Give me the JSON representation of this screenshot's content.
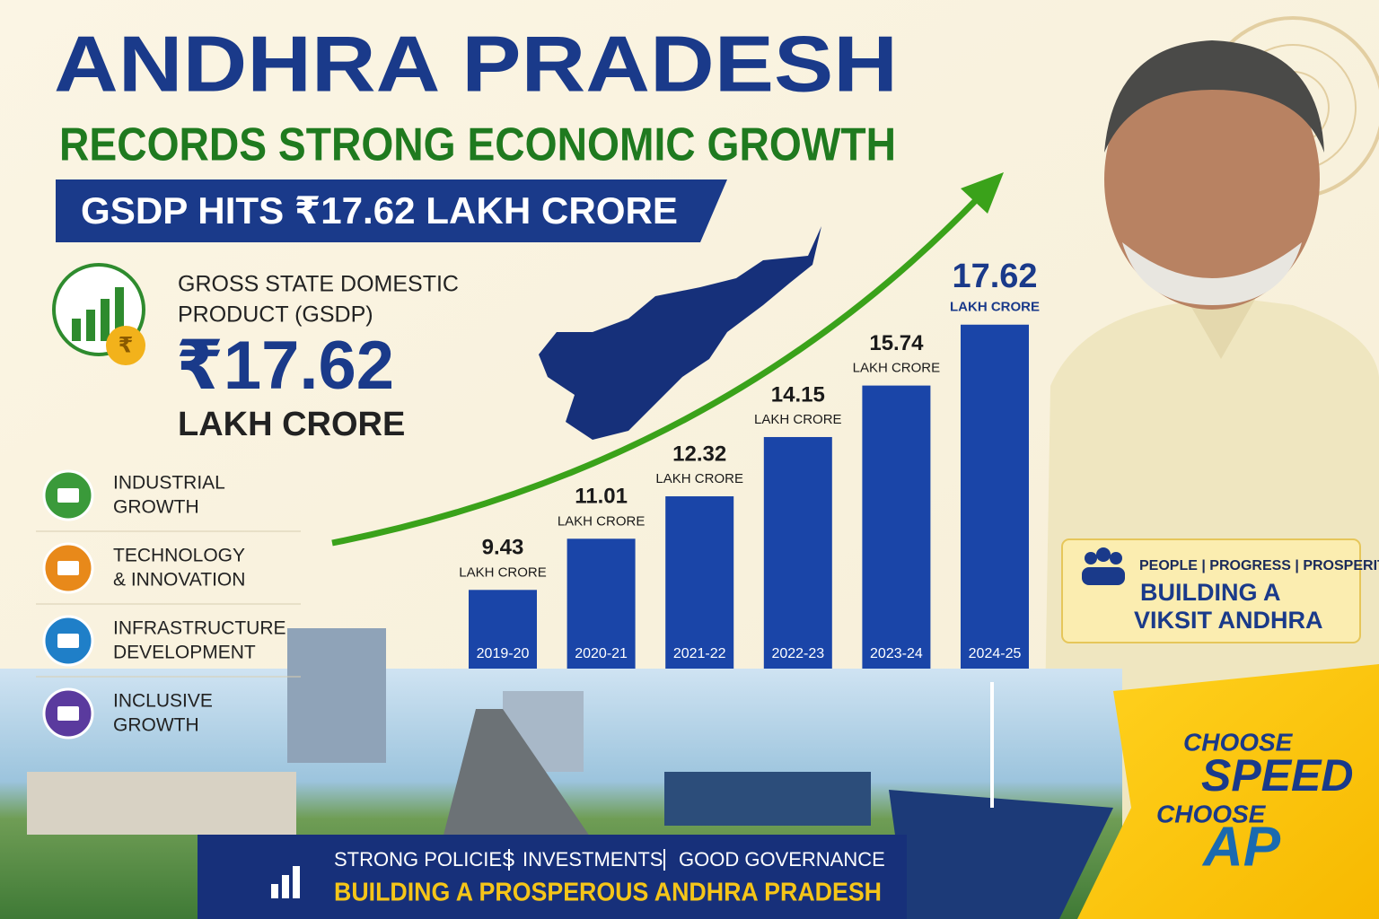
{
  "header": {
    "title": "ANDHRA PRADESH",
    "subtitle": "RECORDS STRONG ECONOMIC GROWTH",
    "banner": "GSDP HITS ₹17.62 LAKH CRORE"
  },
  "gsdp": {
    "label_lines": [
      "GROSS STATE DOMESTIC",
      "PRODUCT (GSDP)"
    ],
    "amount": "₹17.62",
    "unit": "LAKH CRORE",
    "icon_symbol": "₹"
  },
  "features": [
    {
      "lines": [
        "INDUSTRIAL",
        "GROWTH"
      ],
      "color": "#3a9a3a"
    },
    {
      "lines": [
        "TECHNOLOGY",
        "& INNOVATION"
      ],
      "color": "#e8891a"
    },
    {
      "lines": [
        "INFRASTRUCTURE",
        "DEVELOPMENT"
      ],
      "color": "#1f7fc8"
    },
    {
      "lines": [
        "INCLUSIVE",
        "GROWTH"
      ],
      "color": "#5a3a9e"
    }
  ],
  "chart_data": {
    "type": "bar",
    "categories": [
      "2019-20",
      "2020-21",
      "2021-22",
      "2022-23",
      "2023-24",
      "2024-25"
    ],
    "values": [
      9.43,
      11.01,
      12.32,
      14.15,
      15.74,
      17.62
    ],
    "value_unit": "LAKH CRORE",
    "color": "#1a45a8",
    "ylim": [
      7,
      18.5
    ]
  },
  "tagline_box": {
    "top": "PEOPLE | PROGRESS | PROSPERITY",
    "lines": [
      "BUILDING A",
      "VIKSIT ANDHRA"
    ]
  },
  "bottom_banner": {
    "items": [
      "STRONG POLICIES",
      "INVESTMENTS",
      "GOOD GOVERNANCE"
    ],
    "slogan": "BUILDING A PROSPEROUS ANDHRA PRADESH"
  },
  "slogan_corner": [
    "CHOOSE",
    "SPEED",
    "CHOOSE",
    "AP"
  ]
}
